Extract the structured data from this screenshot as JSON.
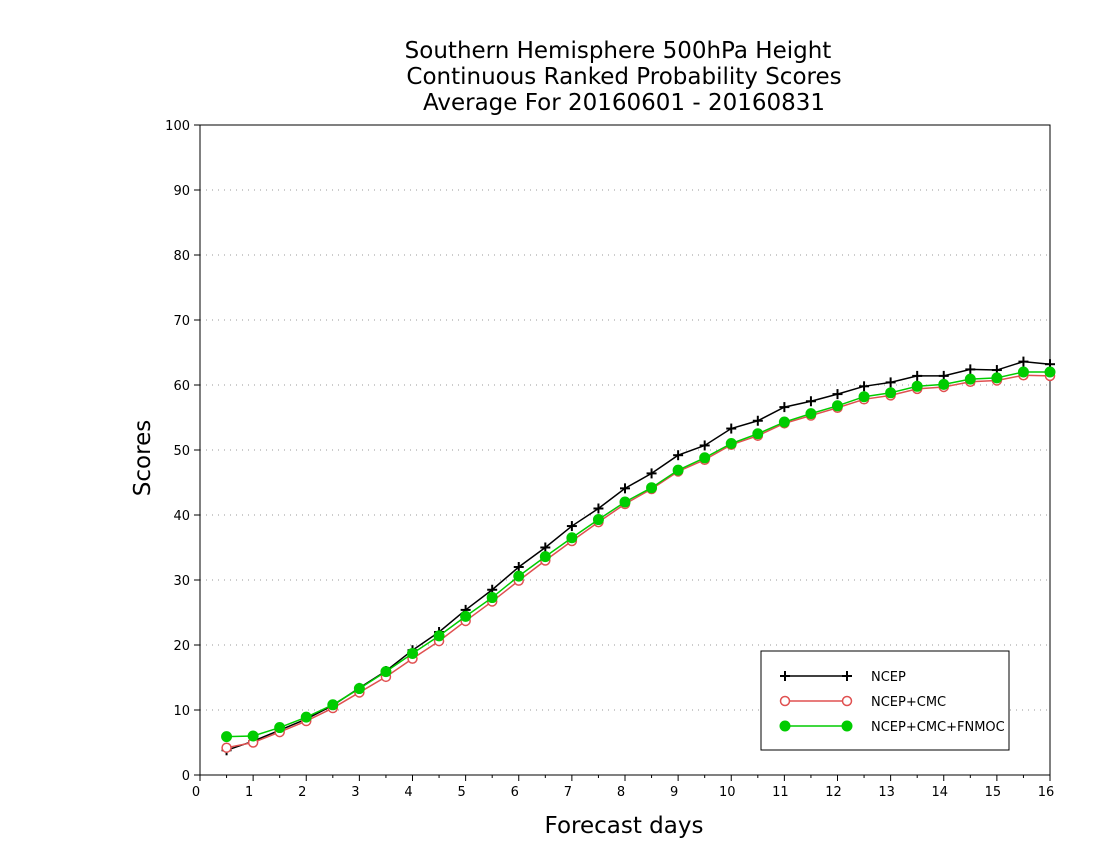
{
  "chart_data": {
    "type": "line",
    "title_lines": [
      "Southern Hemisphere 500hPa Height",
      "Continuous Ranked Probability Scores",
      "Average For 20160601 - 20160831"
    ],
    "xlabel": "Forecast days",
    "ylabel": "Scores",
    "xlim": [
      0,
      16
    ],
    "ylim": [
      0,
      100
    ],
    "xticks": [
      0,
      1,
      2,
      3,
      4,
      5,
      6,
      7,
      8,
      9,
      10,
      11,
      12,
      13,
      14,
      15,
      16
    ],
    "yticks": [
      0,
      10,
      20,
      30,
      40,
      50,
      60,
      70,
      80,
      90,
      100
    ],
    "grid": true,
    "legend_position": "bottom-right",
    "x": [
      0.5,
      1,
      1.5,
      2,
      2.5,
      3,
      3.5,
      4,
      4.5,
      5,
      5.5,
      6,
      6.5,
      7,
      7.5,
      8,
      8.5,
      9,
      9.5,
      10,
      10.5,
      11,
      11.5,
      12,
      12.5,
      13,
      13.5,
      14,
      14.5,
      15,
      15.5,
      16
    ],
    "series": [
      {
        "name": "NCEP",
        "color": "#000000",
        "marker": "plus",
        "values": [
          3.8,
          5.2,
          6.9,
          8.6,
          10.7,
          13.4,
          16.0,
          19.2,
          22.0,
          25.4,
          28.5,
          32.0,
          35.0,
          38.3,
          41.0,
          44.1,
          46.4,
          49.2,
          50.7,
          53.3,
          54.5,
          56.6,
          57.5,
          58.6,
          59.8,
          60.4,
          61.4,
          61.4,
          62.4,
          62.3,
          63.6,
          63.2
        ]
      },
      {
        "name": "NCEP+CMC",
        "color": "#e05050",
        "marker": "open-circle",
        "values": [
          4.2,
          5.0,
          6.6,
          8.3,
          10.3,
          12.7,
          15.1,
          17.9,
          20.6,
          23.7,
          26.7,
          29.9,
          33.0,
          36.0,
          38.9,
          41.7,
          44.0,
          46.7,
          48.5,
          50.8,
          52.2,
          54.1,
          55.3,
          56.5,
          57.8,
          58.4,
          59.4,
          59.7,
          60.5,
          60.7,
          61.5,
          61.4
        ]
      },
      {
        "name": "NCEP+CMC+FNMOC",
        "color": "#00cc00",
        "marker": "filled-circle",
        "values": [
          5.9,
          6.0,
          7.3,
          8.9,
          10.8,
          13.3,
          15.9,
          18.7,
          21.4,
          24.4,
          27.3,
          30.6,
          33.6,
          36.5,
          39.3,
          42.0,
          44.2,
          46.9,
          48.8,
          51.0,
          52.5,
          54.3,
          55.6,
          56.8,
          58.2,
          58.8,
          59.8,
          60.1,
          60.9,
          61.1,
          62.0,
          62.0
        ]
      }
    ]
  }
}
